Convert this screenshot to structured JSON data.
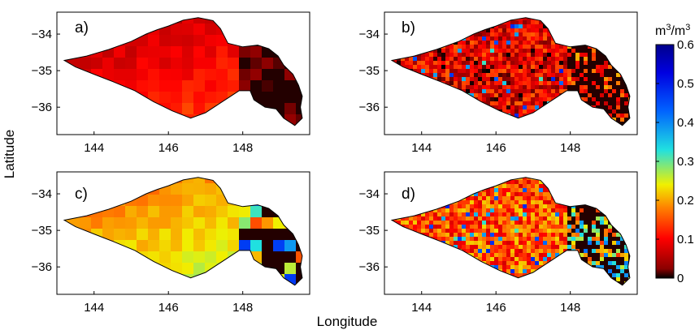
{
  "figure": {
    "xlabel": "Longitude",
    "ylabel": "Latitude",
    "x_ticks": [
      "144",
      "146",
      "148"
    ],
    "y_ticks": [
      "−34",
      "−35",
      "−36"
    ],
    "lon_range": [
      143,
      149.8
    ],
    "lat_range": [
      -36.75,
      -33.4
    ]
  },
  "panels": [
    {
      "id": "a",
      "label": "a)",
      "mean_value": 0.1,
      "east_value": 0.02
    },
    {
      "id": "b",
      "label": "b)",
      "mean_value": 0.08,
      "east_value": 0.15
    },
    {
      "id": "c",
      "label": "c)",
      "mean_value": 0.22,
      "east_value": 0.35
    },
    {
      "id": "d",
      "label": "d)",
      "mean_value": 0.15,
      "east_value": 0.3
    }
  ],
  "colorbar": {
    "unit_base": "m",
    "unit_exp": "3",
    "unit_sep": "/m",
    "unit_exp2": "3",
    "min": 0,
    "max": 0.6,
    "tick_labels": [
      "0.6",
      "0.5",
      "0.4",
      "0.3",
      "0.2",
      "0.1",
      "0"
    ],
    "colormap": "jet",
    "colors": {
      "bottom": "#000000",
      "red": "#c00000",
      "orange": "#ff8000",
      "yellow": "#f0f000",
      "cyan": "#20e0e0",
      "blue": "#0040ff",
      "navy": "#00008b"
    }
  }
}
